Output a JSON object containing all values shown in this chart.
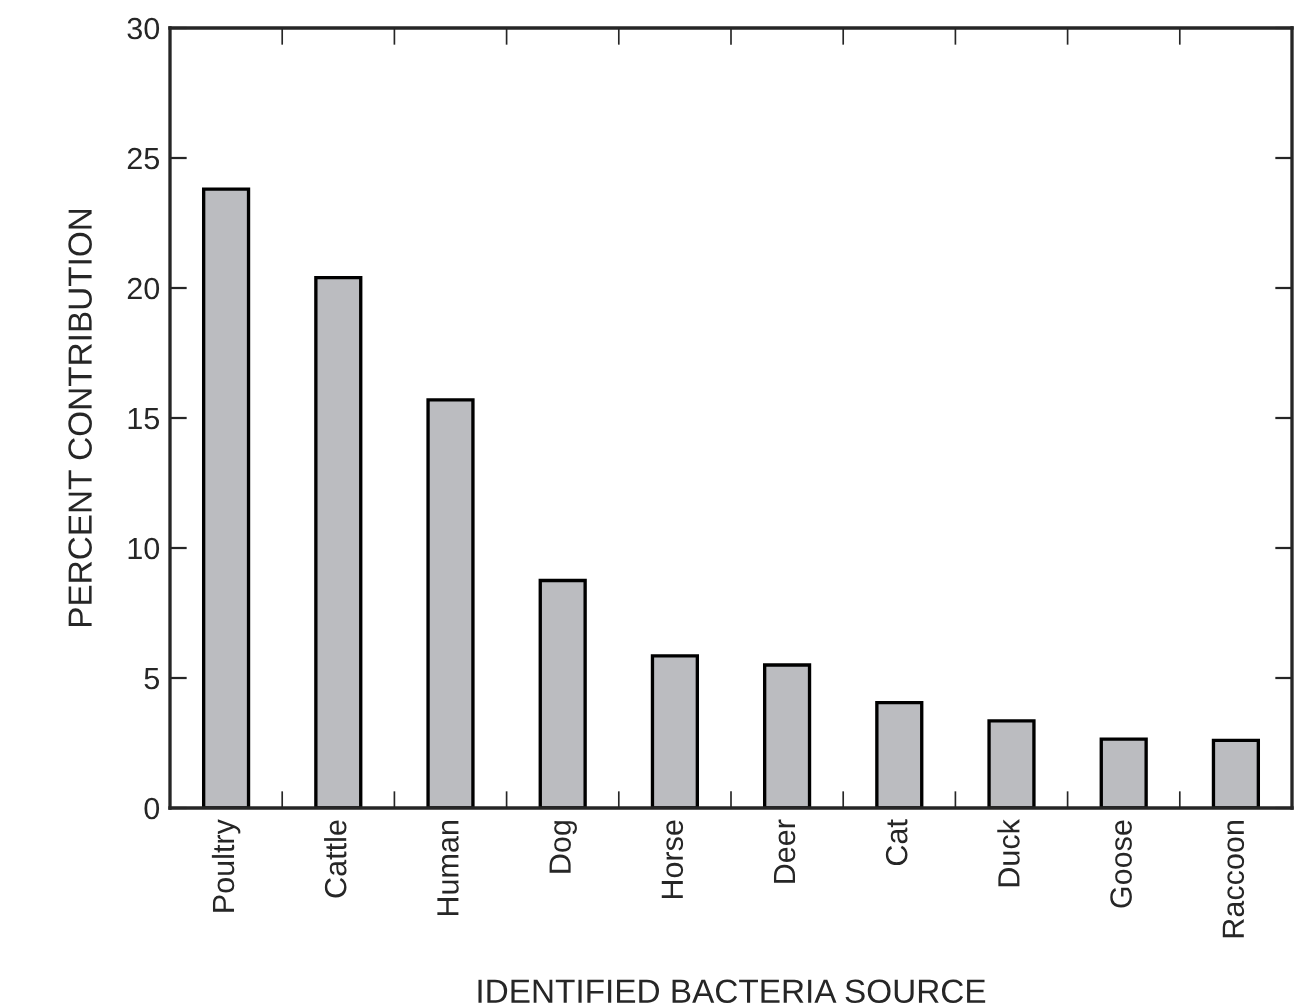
{
  "chart_data": {
    "type": "bar",
    "xlabel": "IDENTIFIED BACTERIA SOURCE",
    "ylabel": "PERCENT CONTRIBUTION",
    "categories": [
      "Poultry",
      "Cattle",
      "Human",
      "Dog",
      "Horse",
      "Deer",
      "Cat",
      "Duck",
      "Goose",
      "Raccoon"
    ],
    "values": [
      23.8,
      20.4,
      15.7,
      8.75,
      5.85,
      5.5,
      4.05,
      3.35,
      2.65,
      2.6
    ],
    "color": "#bbbcc0",
    "ylim": [
      0,
      30
    ],
    "yticks": [
      0,
      5,
      10,
      15,
      20,
      25,
      30
    ],
    "grid": false,
    "legend": false
  }
}
